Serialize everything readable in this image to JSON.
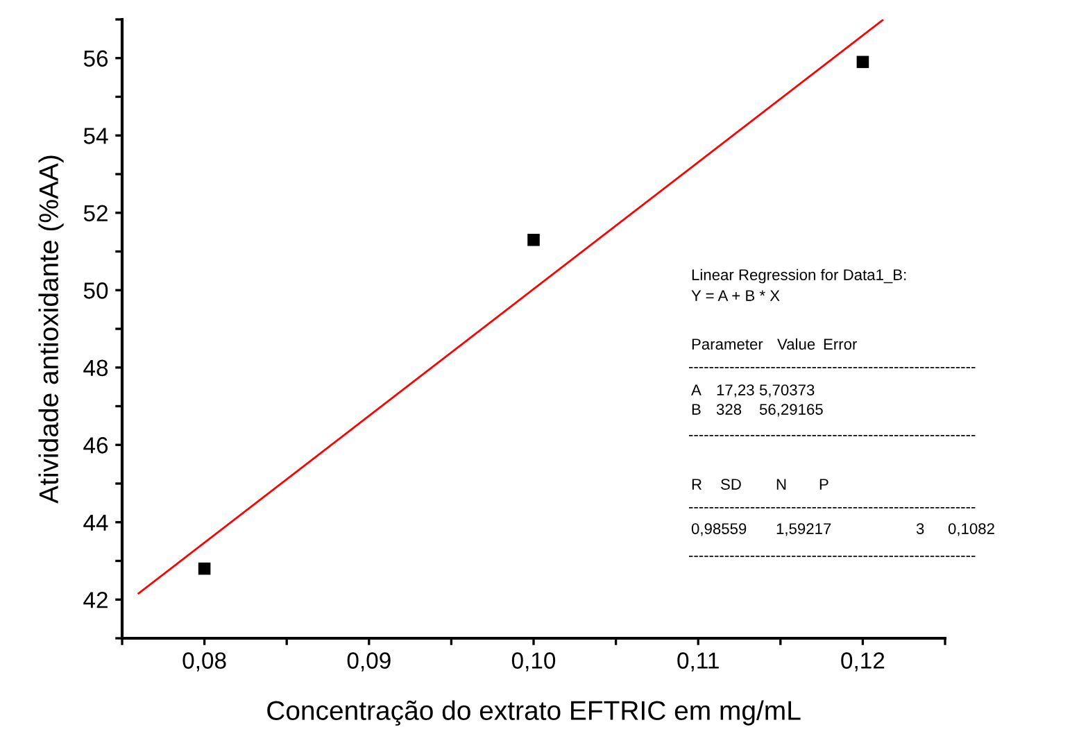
{
  "chart_data": {
    "type": "scatter",
    "xlabel": "Concentração do extrato EFTRIC em mg/mL",
    "ylabel": "Atividade antioxidante (%AA)",
    "x": [
      0.08,
      0.1,
      0.12
    ],
    "series": [
      {
        "color": "#000000",
        "marker": "square",
        "values": [
          42.8,
          51.3,
          55.9
        ]
      },
      {
        "type": "line",
        "color": "#ff0000",
        "marker": "none",
        "line_style": "solid",
        "x": [
          0.076,
          0.1212
        ],
        "values": [
          42.16,
          56.98
        ]
      }
    ],
    "xlim": [
      0.075,
      0.125
    ],
    "ylim": [
      41,
      57
    ],
    "xticks": [
      {
        "value": 0.075,
        "label": null
      },
      {
        "value": 0.08,
        "label": "0,08"
      },
      {
        "value": 0.085,
        "label": null
      },
      {
        "value": 0.09,
        "label": "0,09"
      },
      {
        "value": 0.095,
        "label": null
      },
      {
        "value": 0.1,
        "label": "0,10"
      },
      {
        "value": 0.105,
        "label": null
      },
      {
        "value": 0.11,
        "label": "0,11"
      },
      {
        "value": 0.115,
        "label": null
      },
      {
        "value": 0.12,
        "label": "0,12"
      },
      {
        "value": 0.125,
        "label": null
      }
    ],
    "yticks": [
      {
        "value": 41,
        "label": null
      },
      42,
      {
        "value": 43,
        "label": null
      },
      44,
      {
        "value": 45,
        "label": null
      },
      46,
      {
        "value": 47,
        "label": null
      },
      48,
      {
        "value": 49,
        "label": null
      },
      50,
      {
        "value": 51,
        "label": null
      },
      52,
      {
        "value": 53,
        "label": null
      },
      54,
      {
        "value": 55,
        "label": null
      },
      56,
      {
        "value": 57,
        "label": null
      }
    ],
    "grid": false,
    "legend": false,
    "annotations": [
      "Linear Regression for Data1_B:",
      "Y = A + B * X",
      "Parameter",
      "Value",
      "Error",
      "--------------------------------------------------------",
      "A",
      "17,23",
      "5,70373",
      "B",
      "328",
      "56,29165",
      "--------------------------------------------------------",
      "R",
      "SD",
      "N",
      "P",
      "--------------------------------------------------------",
      "0,98559",
      "1,59217",
      "3",
      "0,1082",
      "--------------------------------------------------------"
    ]
  }
}
